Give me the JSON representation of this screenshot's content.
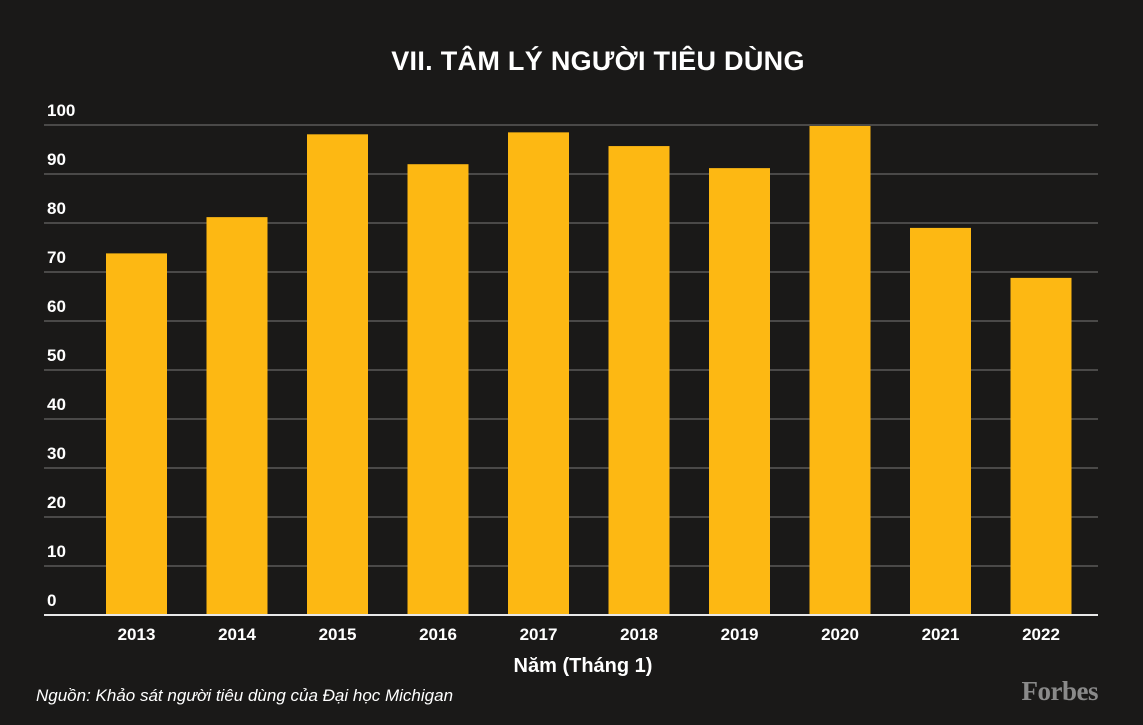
{
  "chart_data": {
    "type": "bar",
    "title": "VII. TÂM LÝ NGƯỜI TIÊU DÙNG",
    "xlabel": "Năm (Tháng 1)",
    "ylabel": "",
    "categories": [
      "2013",
      "2014",
      "2015",
      "2016",
      "2017",
      "2018",
      "2019",
      "2020",
      "2021",
      "2022"
    ],
    "values": [
      73.8,
      81.2,
      98.1,
      92.0,
      98.5,
      95.7,
      91.2,
      99.8,
      79.0,
      68.8
    ],
    "ylim": [
      0,
      100
    ],
    "yticks": [
      0,
      10,
      20,
      30,
      40,
      50,
      60,
      70,
      80,
      90,
      100
    ],
    "grid": true,
    "legend": "none",
    "colors": {
      "bar": "#fdb813",
      "background": "#1a1918",
      "grid": "#4a4948"
    }
  },
  "source": "Nguồn: Khảo sát người tiêu dùng của Đại học Michigan",
  "logo": "Forbes"
}
